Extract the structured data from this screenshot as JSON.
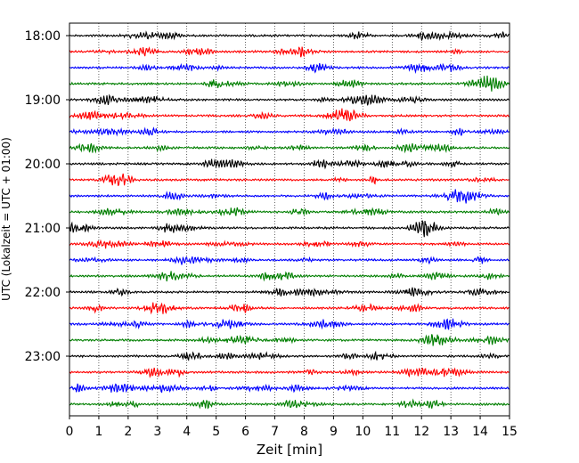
{
  "chart_data": {
    "type": "line",
    "title": "",
    "xlabel": "Zeit  [min]",
    "ylabel": "UTC (Lokalzeit = UTC + 01:00)",
    "xlim": [
      0,
      15
    ],
    "x_ticks": [
      "0",
      "1",
      "2",
      "3",
      "4",
      "5",
      "6",
      "7",
      "8",
      "9",
      "10",
      "11",
      "12",
      "13",
      "14",
      "15"
    ],
    "hour_labels": [
      "18:00",
      "19:00",
      "20:00",
      "21:00",
      "22:00",
      "23:00"
    ],
    "grid": "vertical-dotted",
    "minutes_per_trace": 15,
    "trace_count": 24,
    "color_cycle": [
      "#000000",
      "#ff0000",
      "#0000ff",
      "#007f00"
    ]
  }
}
